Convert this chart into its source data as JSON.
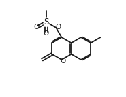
{
  "bg": "#ffffff",
  "lc": "#1a1a1a",
  "lw": 1.3,
  "doff": 0.012,
  "BR": 0.115,
  "BCx": 0.685,
  "BCy": 0.5,
  "figsize": [
    1.85,
    1.43
  ],
  "dpi": 100
}
